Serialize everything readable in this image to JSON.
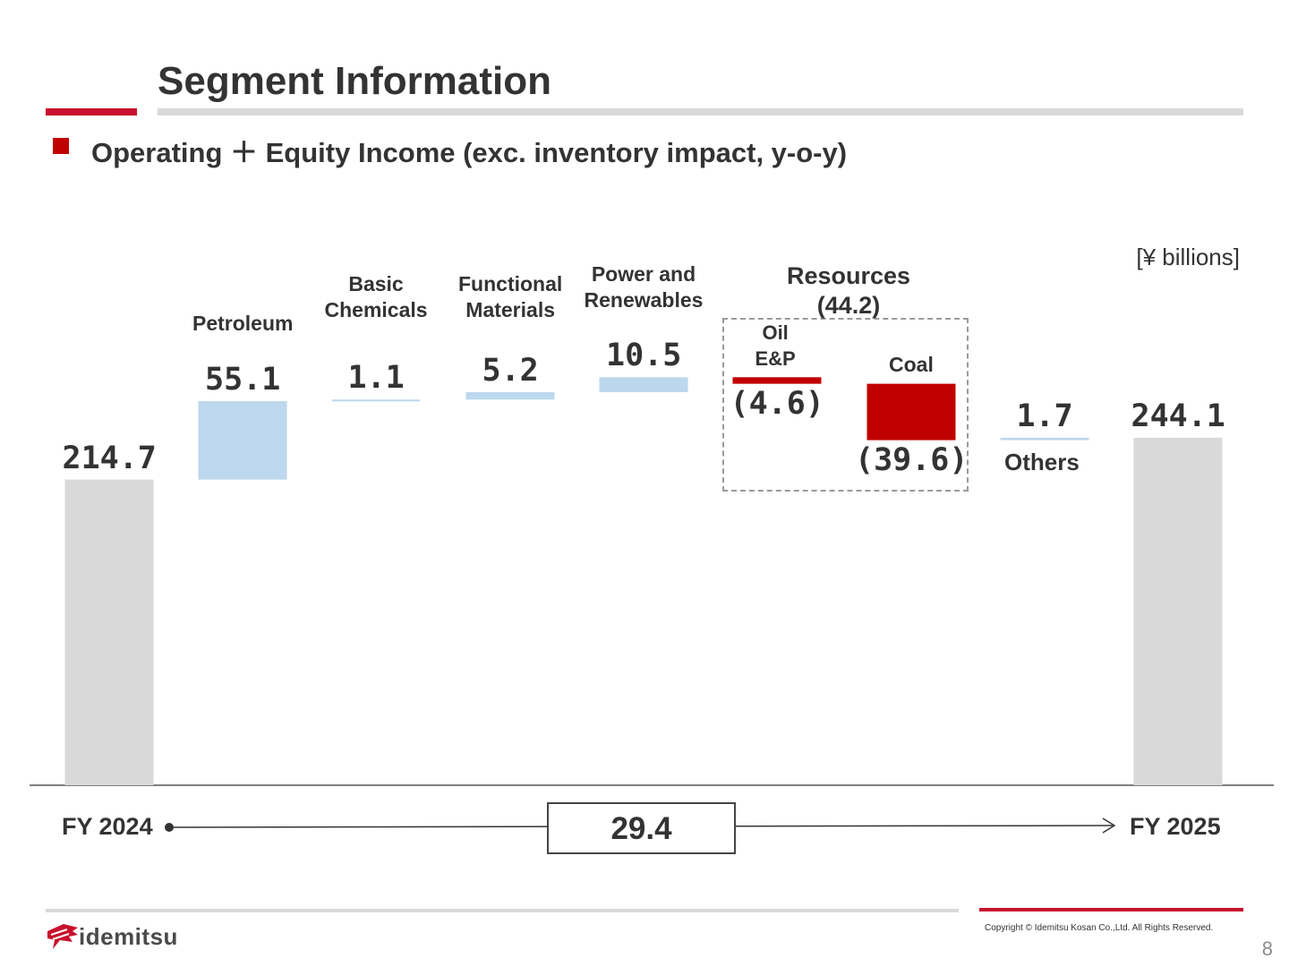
{
  "header": {
    "title": "Segment Information",
    "subtitle": "Operating ＋ Equity Income (exc. inventory impact, y-o-y)",
    "unit": "[¥ billions]"
  },
  "resources_group": {
    "title": "Resources",
    "total": "(44.2)"
  },
  "timeline": {
    "start_label": "FY 2024",
    "end_label": "FY 2025",
    "change": "29.4"
  },
  "footer": {
    "copyright": "Copyright © Idemitsu Kosan Co.,Ltd.  All Rights Reserved.",
    "page_number": "8",
    "logo_text": "idemitsu"
  },
  "colors": {
    "total_bar": "#d9d9d9",
    "increase_bar": "#bdd7ee",
    "decrease_bar": "#c00000",
    "accent": "#c8102e"
  },
  "chart_data": {
    "type": "bar",
    "subtype": "waterfall",
    "unit": "[¥ billions]",
    "steps": [
      {
        "label": "FY 2024",
        "value": 214.7,
        "display": "214.7",
        "kind": "total"
      },
      {
        "label": "Petroleum",
        "value": 55.1,
        "display": "55.1",
        "kind": "delta"
      },
      {
        "label": "Basic Chemicals",
        "value": 1.1,
        "display": "1.1",
        "kind": "delta"
      },
      {
        "label": "Functional Materials",
        "value": 5.2,
        "display": "5.2",
        "kind": "delta"
      },
      {
        "label": "Power and Renewables",
        "value": 10.5,
        "display": "10.5",
        "kind": "delta"
      },
      {
        "label": "Oil E&P",
        "value": -4.6,
        "display": "(4.6)",
        "kind": "delta",
        "group": "Resources"
      },
      {
        "label": "Coal",
        "value": -39.6,
        "display": "(39.6)",
        "kind": "delta",
        "group": "Resources"
      },
      {
        "label": "Others",
        "value": 1.7,
        "display": "1.7",
        "kind": "delta"
      },
      {
        "label": "FY 2025",
        "value": 244.1,
        "display": "244.1",
        "kind": "total"
      }
    ]
  }
}
